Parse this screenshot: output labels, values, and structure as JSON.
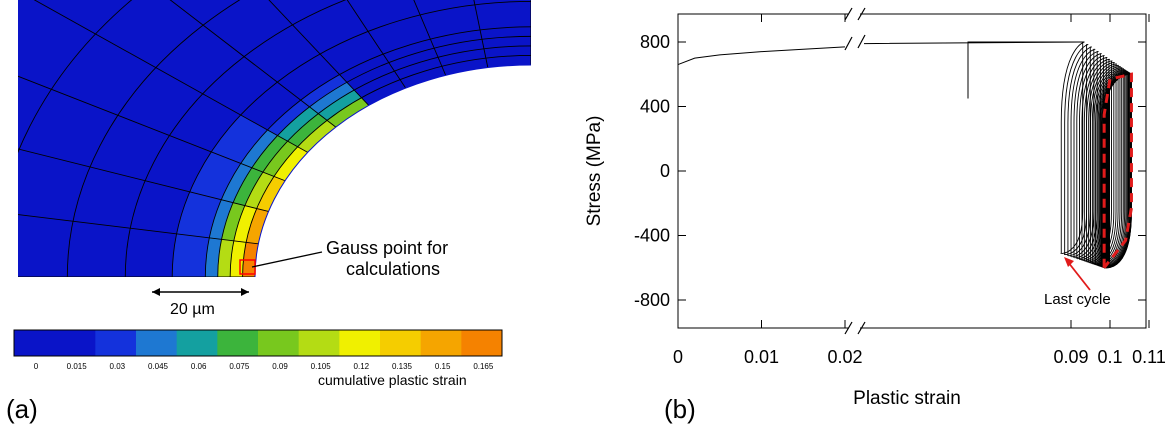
{
  "panel_a": {
    "panel_label": "(a)",
    "annotation": [
      "Gauss point for",
      "calculations"
    ],
    "scale_bar_label": "20 µm",
    "colorbar": {
      "title": "cumulative plastic strain",
      "ticks": [
        "0",
        "0.015",
        "0.03",
        "0.045",
        "0.06",
        "0.075",
        "0.09",
        "0.105",
        "0.12",
        "0.135",
        "0.15",
        "0.165"
      ],
      "colors": [
        "#0a14c8",
        "#0a14c8",
        "#1432dc",
        "#1e78d2",
        "#14a0a0",
        "#3cb43c",
        "#78c81e",
        "#b4dc14",
        "#f0f000",
        "#f5cd00",
        "#f5a500",
        "#f58200"
      ]
    },
    "colors": {
      "background_field": "#0a14c8",
      "mesh_line": "#000000",
      "gauss_marker": "#ff0000"
    }
  },
  "chart_data": {
    "type": "line",
    "panel_label": "(b)",
    "xlabel": "Plastic strain",
    "ylabel": "Stress (MPa)",
    "x_ticks": [
      "0",
      "0.01",
      "0.02",
      "0.09",
      "0.1",
      "0.11"
    ],
    "y_ticks": [
      "800",
      "400",
      "0",
      "-400",
      "-800"
    ],
    "ylim": [
      -1000,
      1000
    ],
    "x_axis_break": "between 0.02 and 0.09",
    "y_axis_break_at_x": "0.02",
    "series": [
      {
        "style": "solid",
        "color": "#000000",
        "x": [
          0,
          0.002,
          0.005,
          0.01,
          0.015,
          0.02,
          0.09,
          0.093
        ],
        "y": [
          660,
          700,
          720,
          740,
          755,
          770,
          790,
          800
        ]
      },
      {
        "style": "solid",
        "color": "#000000",
        "cycles": 28,
        "first_cycle_x_range": [
          0.0875,
          0.093
        ],
        "last_cycle_x_range": [
          0.0985,
          0.1055
        ],
        "first_cycle_y_range": [
          -510,
          800
        ],
        "last_cycle_y_range": [
          -600,
          600
        ]
      },
      {
        "style": "dashed",
        "color": "#e11b1b",
        "x": [
          0.0985,
          0.0985,
          0.1,
          0.1055,
          0.1055,
          0.104,
          0.0985
        ],
        "y": [
          -600,
          350,
          570,
          600,
          -230,
          -430,
          -600
        ]
      }
    ],
    "annotations": [
      {
        "text": "Last cycle",
        "arrow_to": [
          0.0995,
          -560
        ]
      }
    ],
    "colors": {
      "last_cycle": "#e11b1b",
      "curves": "#000000"
    }
  }
}
